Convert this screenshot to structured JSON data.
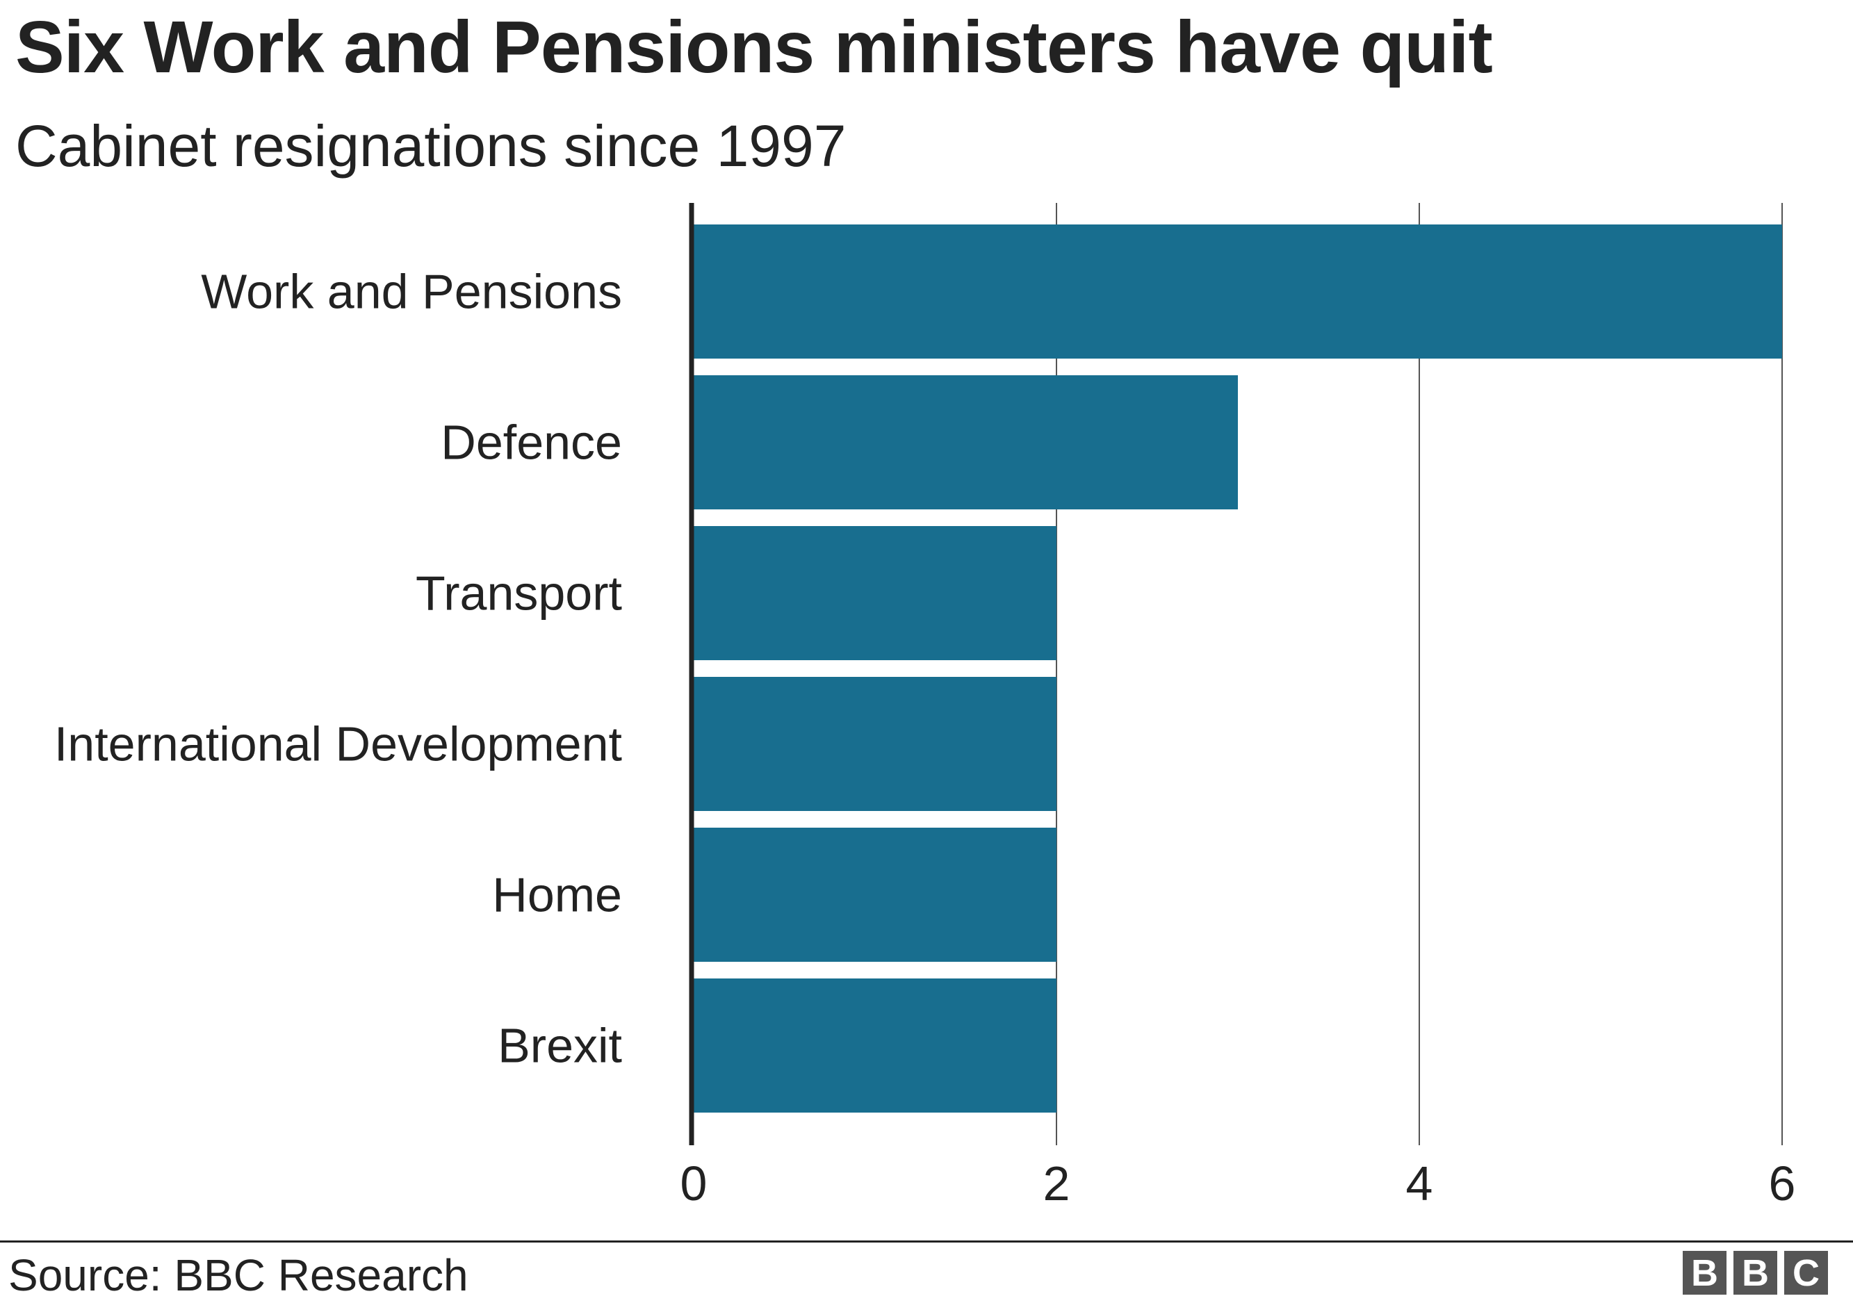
{
  "header": {
    "title": "Six Work and Pensions ministers have quit",
    "subtitle": "Cabinet resignations since 1997"
  },
  "footer": {
    "source": "Source: BBC Research",
    "logo": [
      "B",
      "B",
      "C"
    ]
  },
  "colors": {
    "bar": "#186e8f",
    "text": "#222222",
    "grid": "#555555",
    "logo": "#555555"
  },
  "chart_data": {
    "type": "bar",
    "orientation": "horizontal",
    "categories": [
      "Work and Pensions",
      "Defence",
      "Transport",
      "International Development",
      "Home",
      "Brexit"
    ],
    "values": [
      6,
      3,
      2,
      2,
      2,
      2
    ],
    "title": "Six Work and Pensions ministers have quit",
    "subtitle": "Cabinet resignations since 1997",
    "xlim": [
      0,
      6
    ],
    "xticks": [
      0,
      2,
      4,
      6
    ],
    "grid": true,
    "legend": "none"
  }
}
